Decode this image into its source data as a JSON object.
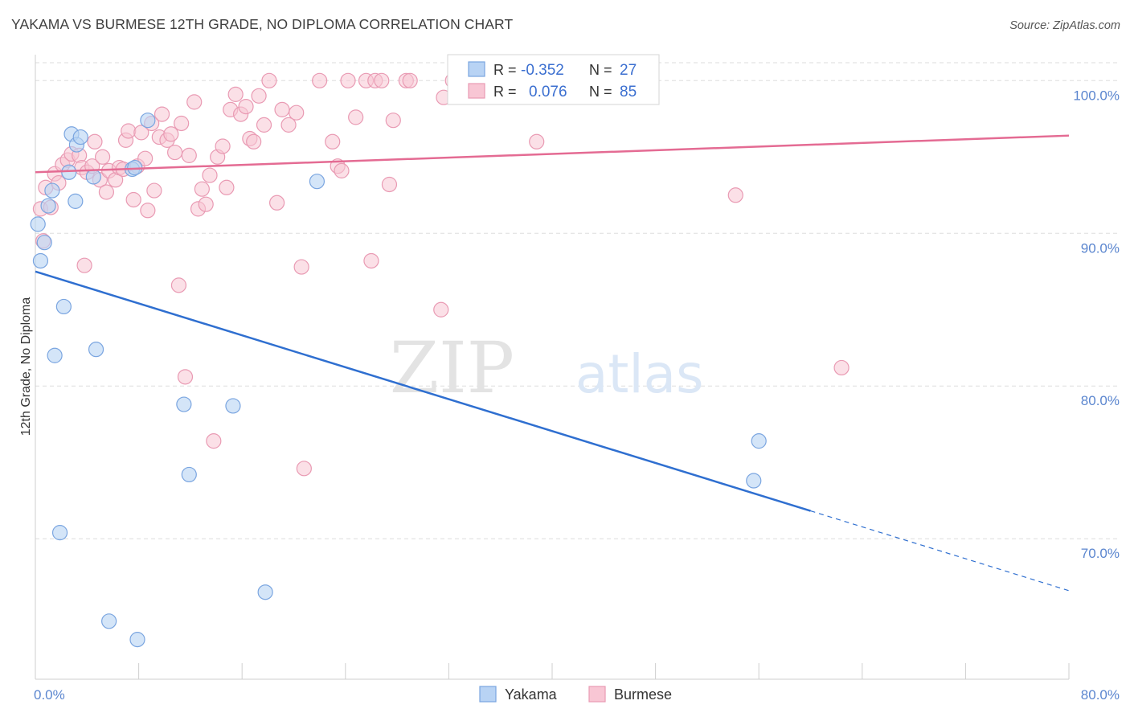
{
  "title": "YAKAMA VS BURMESE 12TH GRADE, NO DIPLOMA CORRELATION CHART",
  "source": "Source: ZipAtlas.com",
  "watermark": {
    "zip": "ZIP",
    "atlas": "atlas"
  },
  "colors": {
    "yakama_fill": "#b8d3f4",
    "yakama_stroke": "#7aa5e0",
    "yakama_line": "#2f6fd0",
    "burmese_fill": "#f8c6d4",
    "burmese_stroke": "#e99ab3",
    "burmese_line": "#e46b93",
    "grid": "#dddddd",
    "tick_label": "#5b86cf"
  },
  "legend": {
    "rows": [
      {
        "r_label": "R = ",
        "r_value": "-0.352",
        "n_label": "N = ",
        "n_value": "27"
      },
      {
        "r_label": "R = ",
        "r_value": "0.076",
        "n_label": "N = ",
        "n_value": "85"
      }
    ]
  },
  "chart_data": {
    "type": "scatter",
    "title": "YAKAMA VS BURMESE 12TH GRADE, NO DIPLOMA CORRELATION CHART",
    "xlabel": "",
    "ylabel": "12th Grade, No Diploma",
    "xlim": [
      0,
      80
    ],
    "ylim": [
      60.8,
      101.7
    ],
    "x_tick_labels": [
      "0.0%",
      "80.0%"
    ],
    "y_ticks": [
      70,
      80,
      90,
      100
    ],
    "y_tick_labels": [
      "70.0%",
      "80.0%",
      "90.0%",
      "100.0%"
    ],
    "grid": true,
    "legend_position": "top-center",
    "series": [
      {
        "name": "Yakama",
        "R": -0.352,
        "N": 27,
        "trend": {
          "x_start": 0,
          "y_start": 87.5,
          "x_solid_end": 60,
          "x_end": 80,
          "y_end": 66.6
        },
        "points": [
          [
            0.2,
            90.6
          ],
          [
            0.4,
            88.2
          ],
          [
            0.7,
            89.4
          ],
          [
            1.0,
            91.8
          ],
          [
            1.3,
            92.8
          ],
          [
            1.5,
            82.0
          ],
          [
            1.9,
            70.4
          ],
          [
            2.2,
            85.2
          ],
          [
            2.6,
            94.0
          ],
          [
            2.8,
            96.5
          ],
          [
            3.1,
            92.1
          ],
          [
            3.2,
            95.8
          ],
          [
            3.5,
            96.3
          ],
          [
            4.5,
            93.7
          ],
          [
            4.7,
            82.4
          ],
          [
            5.7,
            64.6
          ],
          [
            7.5,
            94.2
          ],
          [
            7.7,
            94.3
          ],
          [
            7.9,
            63.4
          ],
          [
            8.7,
            97.4
          ],
          [
            11.5,
            78.8
          ],
          [
            11.9,
            74.2
          ],
          [
            15.3,
            78.7
          ],
          [
            17.8,
            66.5
          ],
          [
            21.8,
            93.4
          ],
          [
            56.0,
            76.4
          ],
          [
            55.6,
            73.8
          ]
        ]
      },
      {
        "name": "Burmese",
        "R": 0.076,
        "N": 85,
        "trend": {
          "x_start": 0,
          "y_start": 94.0,
          "x_end": 80,
          "y_end": 96.4
        },
        "points": [
          [
            0.4,
            91.6
          ],
          [
            0.6,
            89.5
          ],
          [
            0.8,
            93.0
          ],
          [
            1.2,
            91.7
          ],
          [
            1.5,
            93.9
          ],
          [
            1.8,
            93.3
          ],
          [
            2.1,
            94.5
          ],
          [
            2.5,
            94.8
          ],
          [
            2.8,
            95.2
          ],
          [
            3.4,
            95.1
          ],
          [
            3.6,
            94.3
          ],
          [
            3.8,
            87.9
          ],
          [
            4.0,
            94.0
          ],
          [
            4.4,
            94.4
          ],
          [
            4.6,
            96.0
          ],
          [
            5.0,
            93.5
          ],
          [
            5.2,
            95.0
          ],
          [
            5.5,
            92.7
          ],
          [
            5.7,
            94.1
          ],
          [
            6.2,
            93.5
          ],
          [
            6.5,
            94.3
          ],
          [
            6.8,
            94.2
          ],
          [
            7.0,
            96.1
          ],
          [
            7.2,
            96.7
          ],
          [
            7.6,
            92.2
          ],
          [
            7.9,
            94.4
          ],
          [
            8.2,
            96.6
          ],
          [
            8.5,
            94.9
          ],
          [
            8.7,
            91.5
          ],
          [
            9.0,
            97.2
          ],
          [
            9.2,
            92.8
          ],
          [
            9.6,
            96.3
          ],
          [
            9.8,
            97.8
          ],
          [
            10.2,
            96.1
          ],
          [
            10.5,
            96.5
          ],
          [
            10.8,
            95.3
          ],
          [
            11.1,
            86.6
          ],
          [
            11.3,
            97.2
          ],
          [
            11.6,
            80.6
          ],
          [
            11.9,
            95.1
          ],
          [
            12.3,
            98.6
          ],
          [
            12.6,
            91.6
          ],
          [
            12.9,
            92.9
          ],
          [
            13.2,
            91.9
          ],
          [
            13.5,
            93.8
          ],
          [
            13.8,
            76.4
          ],
          [
            14.1,
            95.0
          ],
          [
            14.5,
            95.7
          ],
          [
            14.8,
            93.0
          ],
          [
            15.1,
            98.1
          ],
          [
            15.5,
            99.1
          ],
          [
            15.9,
            97.8
          ],
          [
            16.3,
            98.3
          ],
          [
            16.6,
            96.2
          ],
          [
            16.9,
            96.0
          ],
          [
            17.3,
            99.0
          ],
          [
            17.7,
            97.1
          ],
          [
            18.1,
            100.0
          ],
          [
            18.7,
            92.0
          ],
          [
            19.1,
            98.1
          ],
          [
            19.6,
            97.1
          ],
          [
            20.2,
            97.9
          ],
          [
            20.6,
            87.8
          ],
          [
            20.8,
            74.6
          ],
          [
            22.0,
            100.0
          ],
          [
            23.0,
            96.0
          ],
          [
            23.4,
            94.4
          ],
          [
            23.7,
            94.1
          ],
          [
            24.2,
            100.0
          ],
          [
            24.8,
            97.6
          ],
          [
            25.6,
            100.0
          ],
          [
            26.0,
            88.2
          ],
          [
            26.3,
            100.0
          ],
          [
            26.8,
            100.0
          ],
          [
            27.4,
            93.2
          ],
          [
            27.7,
            97.4
          ],
          [
            28.7,
            100.0
          ],
          [
            29.0,
            100.0
          ],
          [
            31.4,
            85.0
          ],
          [
            31.6,
            98.9
          ],
          [
            32.3,
            100.0
          ],
          [
            38.8,
            96.0
          ],
          [
            40.0,
            100.0
          ],
          [
            54.2,
            92.5
          ],
          [
            62.4,
            81.2
          ]
        ]
      }
    ]
  }
}
